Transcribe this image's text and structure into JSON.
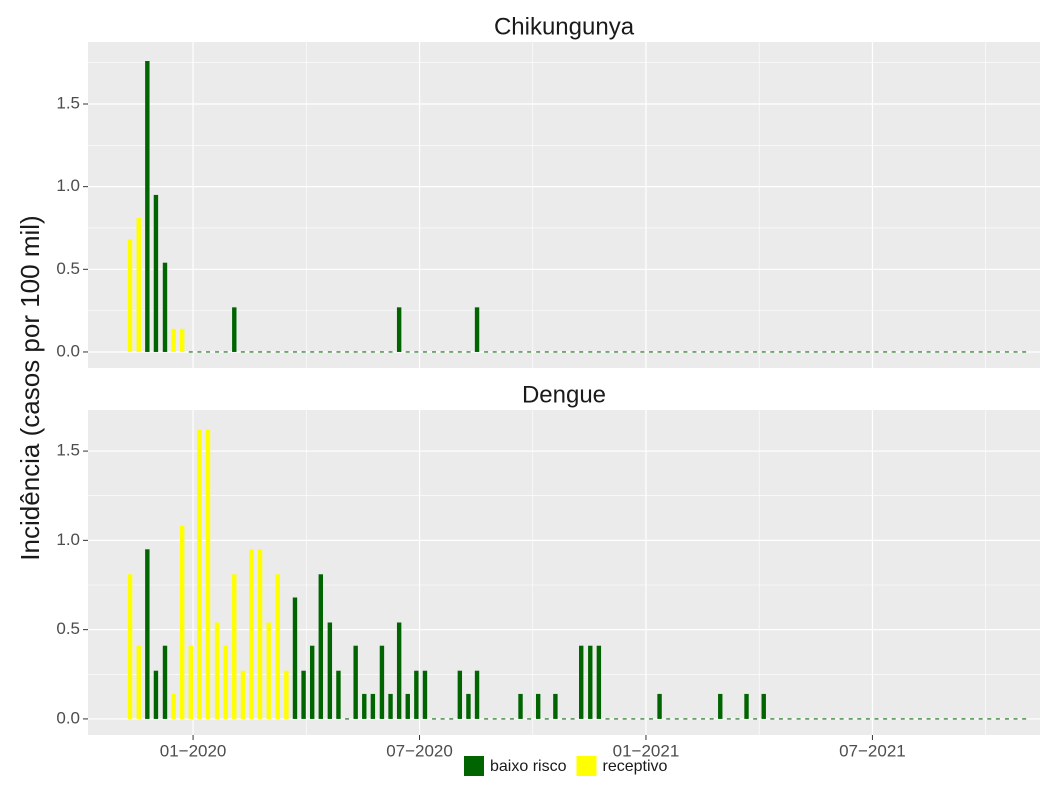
{
  "ylabel": "Incidência (casos por 100 mil)",
  "chart_data": [
    {
      "type": "bar",
      "title": "Chikungunya",
      "x": [
        2019.861,
        2019.88,
        2019.899,
        2019.918,
        2019.938,
        2019.957,
        2019.976,
        2019.995,
        2020.014,
        2020.033,
        2020.053,
        2020.072,
        2020.091,
        2020.11,
        2020.129,
        2020.148,
        2020.167,
        2020.187,
        2020.206,
        2020.225,
        2020.244,
        2020.263,
        2020.282,
        2020.302,
        2020.321,
        2020.34,
        2020.359,
        2020.378,
        2020.397,
        2020.417,
        2020.436,
        2020.455,
        2020.474,
        2020.493,
        2020.512,
        2020.532,
        2020.551,
        2020.57,
        2020.589,
        2020.608,
        2020.627,
        2020.647,
        2020.666,
        2020.685,
        2020.704,
        2020.723,
        2020.742,
        2020.762,
        2020.781,
        2020.8,
        2020.819,
        2020.838,
        2020.857,
        2020.877,
        2020.896,
        2020.915,
        2020.934,
        2020.953,
        2020.972,
        2020.992,
        2021.011,
        2021.03,
        2021.049,
        2021.068,
        2021.087,
        2021.107,
        2021.126,
        2021.145,
        2021.164,
        2021.183,
        2021.202,
        2021.222,
        2021.241,
        2021.26,
        2021.279,
        2021.298,
        2021.317,
        2021.337,
        2021.356,
        2021.375,
        2021.394,
        2021.413,
        2021.432,
        2021.452,
        2021.471,
        2021.49,
        2021.509,
        2021.528,
        2021.547,
        2021.567,
        2021.586,
        2021.605,
        2021.624,
        2021.643,
        2021.662,
        2021.682,
        2021.701,
        2021.72,
        2021.739,
        2021.758,
        2021.777,
        2021.797,
        2021.816,
        2021.835
      ],
      "series": [
        {
          "name": "baixo risco",
          "color": "#006400",
          "values": [
            null,
            null,
            1.76,
            0.95,
            0.54,
            null,
            null,
            0,
            0,
            0,
            0,
            0,
            0.27,
            0,
            0,
            0,
            0,
            0,
            0,
            0,
            0,
            0,
            0,
            0,
            0,
            0,
            0,
            0,
            0,
            0,
            0,
            0.27,
            0,
            0,
            0,
            0,
            0,
            0,
            0,
            0,
            0.27,
            0,
            0,
            0,
            0,
            0,
            0,
            0,
            0,
            0,
            0,
            0,
            0,
            0,
            0,
            0,
            0,
            0,
            0,
            0,
            0,
            0,
            0,
            0,
            0,
            0,
            0,
            0,
            0,
            0,
            0,
            0,
            0,
            0,
            0,
            0,
            0,
            0,
            0,
            0,
            0,
            0,
            0,
            0,
            0,
            0,
            0,
            0,
            0,
            0,
            0,
            0,
            0,
            0,
            0,
            0,
            0,
            0,
            0,
            0,
            0,
            0,
            0,
            0
          ]
        },
        {
          "name": "receptivo",
          "color": "#ffff00",
          "values": [
            0.68,
            0.81,
            null,
            null,
            null,
            0.14,
            0.14,
            null,
            null,
            null,
            null,
            null,
            null,
            null,
            null,
            null,
            null,
            null,
            null,
            null,
            null,
            null,
            null,
            null,
            null,
            null,
            null,
            null,
            null,
            null,
            null,
            null,
            null,
            null,
            null,
            null,
            null,
            null,
            null,
            null,
            null,
            null,
            null,
            null,
            null,
            null,
            null,
            null,
            null,
            null,
            null,
            null,
            null,
            null,
            null,
            null,
            null,
            null,
            null,
            null,
            null,
            null,
            null,
            null,
            null,
            null,
            null,
            null,
            null,
            null,
            null,
            null,
            null,
            null,
            null,
            null,
            null,
            null,
            null,
            null,
            null,
            null,
            null,
            null,
            null,
            null,
            null,
            null,
            null,
            null,
            null,
            null,
            null,
            null,
            null,
            null,
            null,
            null,
            null,
            null,
            null,
            null,
            null,
            null
          ]
        }
      ],
      "xlim": [
        2019.768,
        2021.87
      ],
      "ylim": [
        -0.097,
        1.875
      ],
      "yticks": [
        {
          "value": 0,
          "label": "0.0"
        },
        0.5,
        {
          "value": 1,
          "label": "1.0"
        },
        1.5
      ],
      "grid": true
    },
    {
      "type": "bar",
      "title": "Dengue",
      "x": [
        2019.861,
        2019.88,
        2019.899,
        2019.918,
        2019.938,
        2019.957,
        2019.976,
        2019.995,
        2020.014,
        2020.033,
        2020.053,
        2020.072,
        2020.091,
        2020.11,
        2020.129,
        2020.148,
        2020.167,
        2020.187,
        2020.206,
        2020.225,
        2020.244,
        2020.263,
        2020.282,
        2020.302,
        2020.321,
        2020.34,
        2020.359,
        2020.378,
        2020.397,
        2020.417,
        2020.436,
        2020.455,
        2020.474,
        2020.493,
        2020.512,
        2020.532,
        2020.551,
        2020.57,
        2020.589,
        2020.608,
        2020.627,
        2020.647,
        2020.666,
        2020.685,
        2020.704,
        2020.723,
        2020.742,
        2020.762,
        2020.781,
        2020.8,
        2020.819,
        2020.838,
        2020.857,
        2020.877,
        2020.896,
        2020.915,
        2020.934,
        2020.953,
        2020.972,
        2020.992,
        2021.011,
        2021.03,
        2021.049,
        2021.068,
        2021.087,
        2021.107,
        2021.126,
        2021.145,
        2021.164,
        2021.183,
        2021.202,
        2021.222,
        2021.241,
        2021.26,
        2021.279,
        2021.298,
        2021.317,
        2021.337,
        2021.356,
        2021.375,
        2021.394,
        2021.413,
        2021.432,
        2021.452,
        2021.471,
        2021.49,
        2021.509,
        2021.528,
        2021.547,
        2021.567,
        2021.586,
        2021.605,
        2021.624,
        2021.643,
        2021.662,
        2021.682,
        2021.701,
        2021.72,
        2021.739,
        2021.758,
        2021.777,
        2021.797,
        2021.816,
        2021.835
      ],
      "series": [
        {
          "name": "baixo risco",
          "color": "#006400",
          "values": [
            null,
            null,
            0.95,
            0.27,
            0.41,
            null,
            null,
            null,
            null,
            null,
            null,
            null,
            null,
            null,
            null,
            null,
            null,
            null,
            null,
            0.68,
            0.27,
            0.41,
            0.81,
            0.54,
            0.27,
            0,
            0.41,
            0.14,
            0.14,
            0.41,
            0.14,
            0.54,
            0.14,
            0.27,
            0.27,
            0,
            0,
            0,
            0.27,
            0.14,
            0.27,
            0,
            0,
            0,
            0,
            0.14,
            0,
            0.14,
            0,
            0.14,
            0,
            0,
            0.41,
            0.41,
            0.41,
            0,
            0,
            0,
            0,
            0,
            0,
            0.14,
            0,
            0,
            0,
            0,
            0,
            0,
            0.14,
            0,
            0,
            0.14,
            0,
            0.14,
            0,
            0,
            0,
            0,
            0,
            0,
            0,
            0,
            0,
            0,
            0,
            0,
            0,
            0,
            0,
            0,
            0,
            0,
            0,
            0,
            0,
            0,
            0,
            0,
            0,
            0,
            0,
            0,
            0,
            0
          ]
        },
        {
          "name": "receptivo",
          "color": "#ffff00",
          "values": [
            0.81,
            0.41,
            null,
            null,
            null,
            0.14,
            1.08,
            0.41,
            1.62,
            1.62,
            0.54,
            0.41,
            0.81,
            0.27,
            0.95,
            0.95,
            0.54,
            0.81,
            0.27,
            null,
            null,
            null,
            null,
            null,
            null,
            null,
            null,
            null,
            null,
            null,
            null,
            null,
            null,
            null,
            null,
            null,
            null,
            null,
            null,
            null,
            null,
            null,
            null,
            null,
            null,
            null,
            null,
            null,
            null,
            null,
            null,
            null,
            null,
            null,
            null,
            null,
            null,
            null,
            null,
            null,
            null,
            null,
            null,
            null,
            null,
            null,
            null,
            null,
            null,
            null,
            null,
            null,
            null,
            null,
            null,
            null,
            null,
            null,
            null,
            null,
            null,
            null,
            null,
            null,
            null,
            null,
            null,
            null,
            null,
            null,
            null,
            null,
            null,
            null,
            null,
            null,
            null,
            null,
            null,
            null,
            null,
            null,
            null,
            null
          ]
        }
      ],
      "xlim": [
        2019.768,
        2021.87
      ],
      "xticks": [
        {
          "value": 2020,
          "label": "01−2020"
        },
        {
          "value": 2020.5,
          "label": "07−2020"
        },
        {
          "value": 2021,
          "label": "01−2021"
        },
        {
          "value": 2021.5,
          "label": "07−2021"
        }
      ],
      "ylim": [
        -0.09,
        1.73
      ],
      "yticks": [
        {
          "value": 0,
          "label": "0.0"
        },
        0.5,
        {
          "value": 1,
          "label": "1.0"
        },
        1.5
      ],
      "grid": true
    }
  ]
}
